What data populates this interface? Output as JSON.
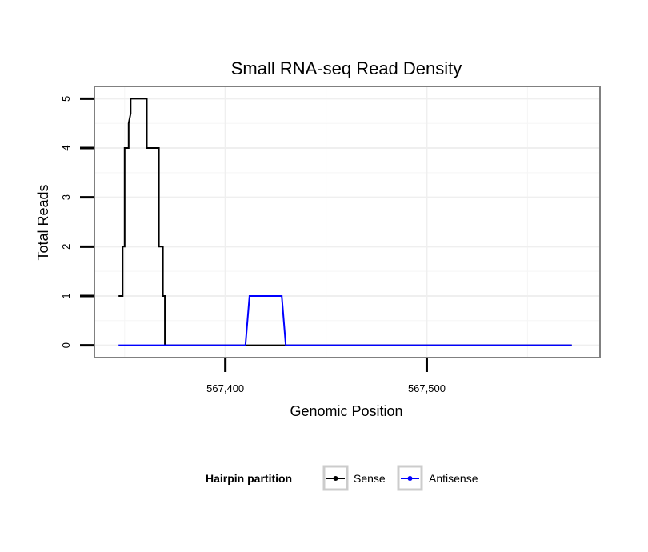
{
  "chart_data": {
    "type": "line",
    "title": "Small RNA-seq Read Density",
    "xlabel": "Genomic Position",
    "ylabel": "Total Reads",
    "xlim": [
      567335,
      567586
    ],
    "ylim": [
      -0.25,
      5.25
    ],
    "xticks": [
      567400,
      567500
    ],
    "xtick_labels": [
      "567,400",
      "567,500"
    ],
    "yticks": [
      0,
      1,
      2,
      3,
      4,
      5
    ],
    "ytick_labels": [
      "0",
      "1",
      "2",
      "3",
      "4",
      "5"
    ],
    "grid": true,
    "legend_title": "Hairpin partition",
    "legend_position": "bottom",
    "series": [
      {
        "name": "Sense",
        "color": "#000000",
        "x": [
          567347,
          567349,
          567349,
          567350,
          567350,
          567352,
          567352,
          567353,
          567353,
          567361,
          567361,
          567367,
          567367,
          567369,
          567369,
          567370,
          567370,
          567572
        ],
        "y": [
          1,
          1,
          2,
          2,
          4,
          4,
          4.5,
          4.7,
          5,
          5,
          4,
          4,
          2,
          2,
          1,
          1,
          0,
          0
        ]
      },
      {
        "name": "Antisense",
        "color": "#0000ff",
        "x": [
          567347,
          567410,
          567412,
          567428,
          567430,
          567572
        ],
        "y": [
          0,
          0,
          1,
          1,
          0,
          0
        ]
      }
    ]
  }
}
